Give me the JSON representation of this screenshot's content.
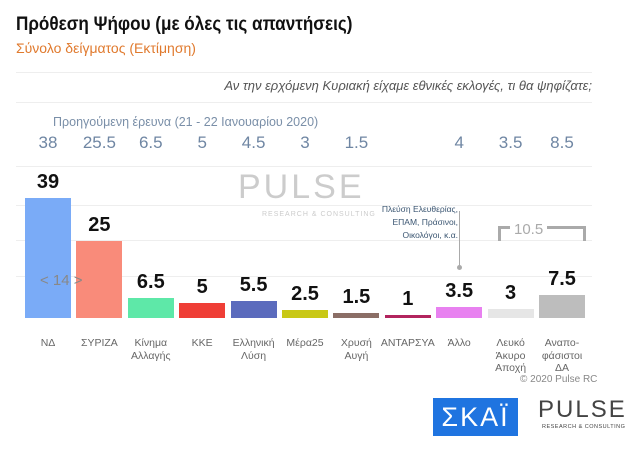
{
  "header": {
    "title": "Πρόθεση Ψήφου (με όλες τις απαντήσεις)",
    "subtitle": "Σύνολο δείγματος   (Εκτίμηση)",
    "question": "Αν την ερχόμενη Κυριακή είχαμε εθνικές εκλογές, τι θα ψηφίζατε;"
  },
  "chart_data": {
    "type": "bar",
    "categories": [
      "ΝΔ",
      "ΣΥΡΙΖΑ",
      "Κίνημα Αλλαγής",
      "ΚΚΕ",
      "Ελληνική Λύση",
      "Μέρα25",
      "Χρυσή Αυγή",
      "ΑΝΤΑΡΣΥΑ",
      "Άλλο",
      "Λευκό Άκυρο Αποχή",
      "Αναπο-φάσιστοι ΔΑ"
    ],
    "values": [
      39,
      25,
      6.5,
      5,
      5.5,
      2.5,
      1.5,
      1,
      3.5,
      3,
      7.5
    ],
    "value_labels": [
      "39",
      "25",
      "6.5",
      "5",
      "5.5",
      "2.5",
      "1.5",
      "1",
      "3.5",
      "3",
      "7.5"
    ],
    "previous_label": "Προηγούμενη έρευνα  (21 - 22 Ιανουαρίου  2020)",
    "previous_values": [
      "38",
      "25.5",
      "6.5",
      "5",
      "4.5",
      "3",
      "1.5",
      "",
      "4",
      "3.5",
      "8.5"
    ],
    "colors": [
      "#7aabf7",
      "#f98b7a",
      "#5ee8a8",
      "#ef3e36",
      "#5b6bbd",
      "#c9c816",
      "#8b6e66",
      "#b2245e",
      "#e881f0",
      "#e6e6e6",
      "#bdbdbd"
    ],
    "annotations": {
      "gap_nd_syriza": "< 14 >",
      "other_note": "Πλεύση Ελευθερίας, ΕΠΑΜ, Πράσινοι, Οικολόγοι, κ.α.",
      "blank_undecided_sum": "10.5"
    },
    "ylim": [
      0,
      40
    ],
    "grid": true
  },
  "footer": {
    "copyright": "© 2020 Pulse RC",
    "logo_skai": "ΣΚΑΪ",
    "logo_pulse": "PULSE",
    "logo_pulse_sub": "RESEARCH & CONSULTING"
  },
  "watermark": {
    "text": "PULSE",
    "sub": "RESEARCH & CONSULTING"
  }
}
